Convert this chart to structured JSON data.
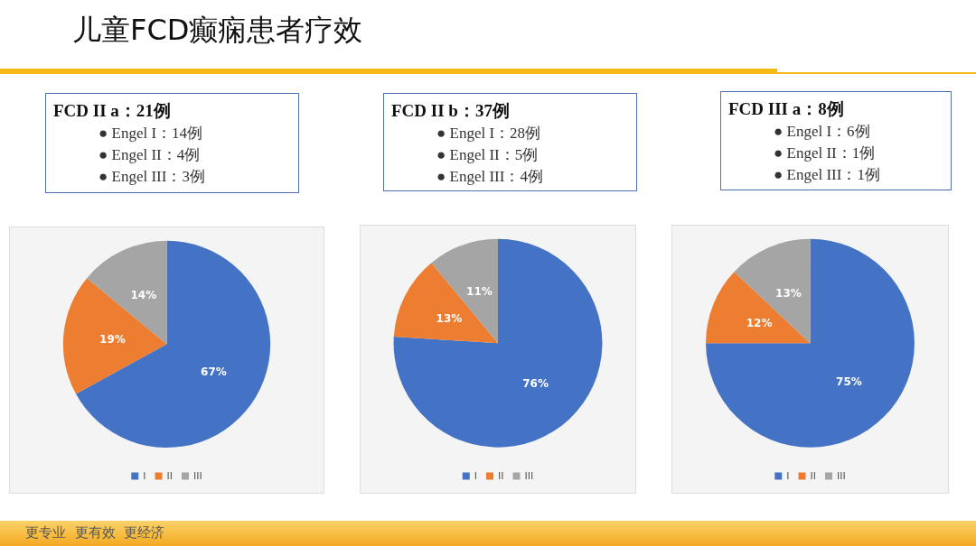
{
  "chart_data": [
    {
      "type": "pie",
      "title": "儿童FCD癫痫患者疗效",
      "subtitle": "FCD II a：21例",
      "annotations": [
        "● Engel I：14例",
        "● Engel II：4例",
        "● Engel III：3例",
        "更专业  更有效  更经济"
      ],
      "categories": [
        "I",
        "II",
        "III"
      ],
      "values": [
        67,
        19,
        14
      ],
      "value_labels": [
        "67%",
        "19%",
        "14%"
      ],
      "colors": [
        "#4472c4",
        "#ed7d31",
        "#a5a5a5"
      ],
      "legend": "bottom"
    },
    {
      "type": "pie",
      "subtitle": "FCD II b：37例",
      "annotations": [
        "● Engel I：28例",
        "● Engel II：5例",
        "● Engel III：4例"
      ],
      "categories": [
        "I",
        "II",
        "III"
      ],
      "values": [
        76,
        13,
        11
      ],
      "value_labels": [
        "76%",
        "13%",
        "11%"
      ],
      "colors": [
        "#4472c4",
        "#ed7d31",
        "#a5a5a5"
      ],
      "legend": "bottom"
    },
    {
      "type": "pie",
      "subtitle": "FCD III a：8例",
      "annotations": [
        "● Engel I：6例",
        "● Engel II：1例",
        "● Engel III：1例"
      ],
      "categories": [
        "I",
        "II",
        "III"
      ],
      "values": [
        75,
        12,
        13
      ],
      "value_labels": [
        "75%",
        "12%",
        "13%"
      ],
      "colors": [
        "#4472c4",
        "#ed7d31",
        "#a5a5a5"
      ],
      "legend": "bottom"
    }
  ]
}
